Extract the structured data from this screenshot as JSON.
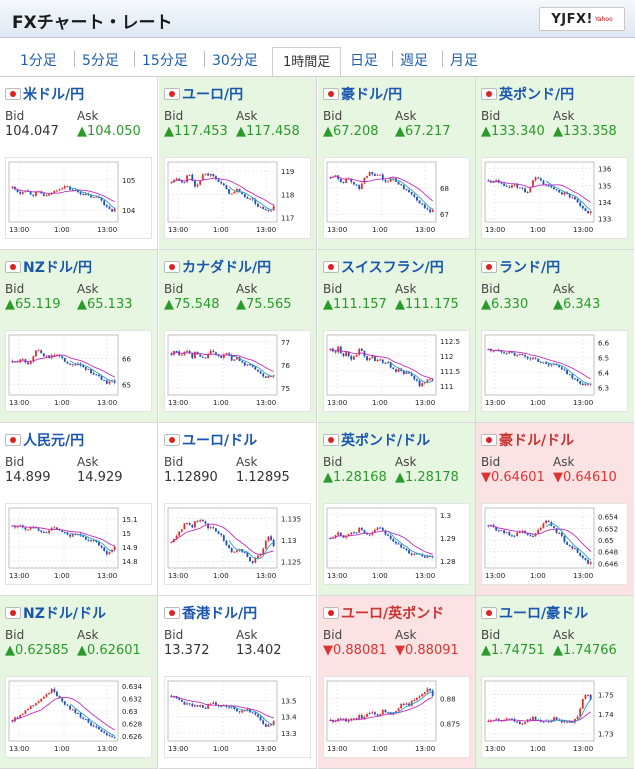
{
  "header": {
    "title": "FXチャート・レート",
    "logo": "YJFX!",
    "logo_sub": "Yahoo"
  },
  "tabs": [
    {
      "label": "1分足"
    },
    {
      "label": "5分足"
    },
    {
      "label": "15分足"
    },
    {
      "label": "30分足"
    },
    {
      "label": "1時間足",
      "active": true
    },
    {
      "label": "日足"
    },
    {
      "label": "週足"
    },
    {
      "label": "月足"
    }
  ],
  "labels": {
    "bid": "Bid",
    "ask": "Ask"
  },
  "x_ticks": [
    "13:00",
    "1:00",
    "13:00"
  ],
  "colors": {
    "up_bg": "#e6f6e0",
    "down_bg": "#fbe3e3",
    "candle_up": "#e03030",
    "candle_down": "#2050c0",
    "ma_long": "#c030c0",
    "ma_short": "#30a0c0"
  },
  "pairs": [
    {
      "name": "米ドル/円",
      "dir": "flat",
      "bid": "104.047",
      "ask": "▲104.050",
      "bid_dir": "flat",
      "ask_dir": "up",
      "flag": "us-jp-flag-icon",
      "y_ticks": [
        "105",
        "104"
      ],
      "yr": [
        103.6,
        105.6
      ],
      "trend": [
        104.75,
        104.65,
        104.55,
        104.7,
        104.6,
        104.5,
        104.6,
        104.55,
        104.45,
        104.5,
        104.6,
        104.7,
        104.75,
        104.8,
        104.7,
        104.65,
        104.6,
        104.55,
        104.5,
        104.45,
        104.4,
        104.45,
        104.3,
        104.1,
        103.95,
        104.05
      ]
    },
    {
      "name": "ユーロ/円",
      "dir": "up",
      "bid": "▲117.453",
      "ask": "▲117.458",
      "bid_dir": "up",
      "ask_dir": "up",
      "flag": "eu-jp-flag-icon",
      "y_ticks": [
        "119",
        "118",
        "117"
      ],
      "yr": [
        116.8,
        119.4
      ],
      "trend": [
        118.5,
        118.7,
        118.6,
        118.4,
        118.9,
        118.7,
        118.2,
        118.6,
        119.0,
        118.8,
        118.9,
        118.7,
        118.5,
        118.3,
        118.1,
        118.0,
        118.2,
        118.1,
        117.8,
        117.9,
        117.7,
        117.5,
        117.4,
        117.3,
        117.2,
        117.45
      ]
    },
    {
      "name": "豪ドル/円",
      "dir": "up",
      "bid": "▲67.208",
      "ask": "▲67.217",
      "bid_dir": "up",
      "ask_dir": "up",
      "flag": "au-jp-flag-icon",
      "y_ticks": [
        "68",
        "67"
      ],
      "yr": [
        66.7,
        69.0
      ],
      "trend": [
        68.4,
        68.5,
        68.3,
        68.2,
        68.4,
        68.3,
        68.1,
        68.0,
        68.3,
        68.5,
        68.6,
        68.4,
        68.5,
        68.3,
        68.2,
        68.4,
        68.3,
        68.1,
        68.0,
        67.9,
        67.8,
        67.6,
        67.4,
        67.2,
        67.1,
        67.2
      ]
    },
    {
      "name": "英ポンド/円",
      "dir": "up",
      "bid": "▲133.340",
      "ask": "▲133.358",
      "bid_dir": "up",
      "ask_dir": "up",
      "flag": "gb-jp-flag-icon",
      "y_ticks": [
        "136",
        "135",
        "134",
        "133"
      ],
      "yr": [
        132.8,
        136.4
      ],
      "trend": [
        135.3,
        135.2,
        135.4,
        135.1,
        135.0,
        134.9,
        135.1,
        134.8,
        135.0,
        134.5,
        134.7,
        135.3,
        135.5,
        135.2,
        135.0,
        134.9,
        134.8,
        134.7,
        134.5,
        134.6,
        134.3,
        134.1,
        133.9,
        133.6,
        133.3,
        133.4
      ]
    },
    {
      "name": "NZドル/円",
      "dir": "up",
      "bid": "▲65.119",
      "ask": "▲65.133",
      "bid_dir": "up",
      "ask_dir": "up",
      "flag": "nz-jp-flag-icon",
      "y_ticks": [
        "66",
        "65"
      ],
      "yr": [
        64.6,
        66.9
      ],
      "trend": [
        65.9,
        65.8,
        66.0,
        65.9,
        65.8,
        66.1,
        66.3,
        66.2,
        66.1,
        66.0,
        66.2,
        66.1,
        66.0,
        65.9,
        65.8,
        65.7,
        65.8,
        65.7,
        65.6,
        65.5,
        65.4,
        65.3,
        65.2,
        65.0,
        65.1,
        65.12
      ]
    },
    {
      "name": "カナダドル/円",
      "dir": "up",
      "bid": "▲75.548",
      "ask": "▲75.565",
      "bid_dir": "up",
      "ask_dir": "up",
      "flag": "ca-jp-flag-icon",
      "y_ticks": [
        "77",
        "76",
        "75"
      ],
      "yr": [
        74.7,
        77.3
      ],
      "trend": [
        76.5,
        76.6,
        76.4,
        76.5,
        76.7,
        76.3,
        76.6,
        76.4,
        76.2,
        76.5,
        76.6,
        76.4,
        76.3,
        76.5,
        76.4,
        76.2,
        76.3,
        76.1,
        76.0,
        76.1,
        75.9,
        75.7,
        75.6,
        75.4,
        75.5,
        75.55
      ]
    },
    {
      "name": "スイスフラン/円",
      "dir": "up",
      "bid": "▲111.157",
      "ask": "▲111.175",
      "bid_dir": "up",
      "ask_dir": "up",
      "flag": "ch-jp-flag-icon",
      "y_ticks": [
        "112.5",
        "112",
        "111.5",
        "111"
      ],
      "yr": [
        110.7,
        112.7
      ],
      "trend": [
        112.2,
        112.1,
        112.3,
        112.0,
        112.1,
        111.9,
        112.0,
        112.2,
        112.1,
        111.9,
        112.0,
        111.8,
        111.9,
        111.7,
        111.8,
        111.6,
        111.5,
        111.6,
        111.4,
        111.5,
        111.3,
        111.2,
        111.0,
        111.1,
        111.2,
        111.16
      ]
    },
    {
      "name": "ランド/円",
      "dir": "up",
      "bid": "▲6.330",
      "ask": "▲6.343",
      "bid_dir": "up",
      "ask_dir": "up",
      "flag": "za-jp-flag-icon",
      "y_ticks": [
        "6.6",
        "6.5",
        "6.4",
        "6.3"
      ],
      "yr": [
        6.25,
        6.65
      ],
      "trend": [
        6.55,
        6.54,
        6.56,
        6.53,
        6.52,
        6.55,
        6.53,
        6.51,
        6.52,
        6.5,
        6.49,
        6.5,
        6.48,
        6.47,
        6.46,
        6.45,
        6.46,
        6.44,
        6.42,
        6.4,
        6.38,
        6.36,
        6.34,
        6.31,
        6.32,
        6.33
      ]
    },
    {
      "name": "人民元/円",
      "dir": "flat",
      "bid": "14.899",
      "ask": "14.929",
      "bid_dir": "flat",
      "ask_dir": "flat",
      "flag": "cn-jp-flag-icon",
      "y_ticks": [
        "15.1",
        "15",
        "14.9",
        "14.8"
      ],
      "yr": [
        14.75,
        15.18
      ],
      "trend": [
        15.05,
        15.04,
        15.06,
        15.03,
        15.02,
        15.05,
        15.04,
        15.01,
        15.0,
        15.02,
        15.04,
        15.03,
        15.01,
        15.0,
        14.98,
        15.0,
        14.99,
        14.97,
        14.95,
        14.96,
        14.94,
        14.92,
        14.88,
        14.84,
        14.86,
        14.9
      ]
    },
    {
      "name": "ユーロ/ドル",
      "dir": "flat",
      "bid": "1.12890",
      "ask": "1.12895",
      "bid_dir": "flat",
      "ask_dir": "flat",
      "flag": "eu-us-flag-icon",
      "y_ticks": [
        "1.135",
        "1.13",
        "1.125"
      ],
      "yr": [
        1.1235,
        1.1375
      ],
      "trend": [
        1.1295,
        1.131,
        1.132,
        1.1335,
        1.134,
        1.133,
        1.1345,
        1.135,
        1.134,
        1.133,
        1.1335,
        1.132,
        1.131,
        1.13,
        1.128,
        1.127,
        1.128,
        1.1275,
        1.127,
        1.1255,
        1.125,
        1.1265,
        1.127,
        1.1295,
        1.131,
        1.1289
      ]
    },
    {
      "name": "英ポンド/ドル",
      "dir": "up",
      "bid": "▲1.28168",
      "ask": "▲1.28178",
      "bid_dir": "up",
      "ask_dir": "up",
      "flag": "gb-us-flag-icon",
      "y_ticks": [
        "1.3",
        "1.29",
        "1.28"
      ],
      "yr": [
        1.277,
        1.303
      ],
      "trend": [
        1.29,
        1.291,
        1.292,
        1.29,
        1.291,
        1.293,
        1.292,
        1.294,
        1.293,
        1.291,
        1.292,
        1.294,
        1.295,
        1.293,
        1.291,
        1.289,
        1.288,
        1.286,
        1.285,
        1.284,
        1.283,
        1.284,
        1.282,
        1.281,
        1.282,
        1.2817
      ]
    },
    {
      "name": "豪ドル/ドル",
      "dir": "down",
      "bid": "▼0.64601",
      "ask": "▼0.64610",
      "bid_dir": "down",
      "ask_dir": "down",
      "flag": "au-us-flag-icon",
      "y_ticks": [
        "0.654",
        "0.652",
        "0.65",
        "0.648",
        "0.646"
      ],
      "yr": [
        0.6452,
        0.6555
      ],
      "trend": [
        0.6525,
        0.6522,
        0.6518,
        0.6515,
        0.6512,
        0.651,
        0.6507,
        0.6512,
        0.6515,
        0.6511,
        0.6505,
        0.6508,
        0.6515,
        0.652,
        0.6535,
        0.6528,
        0.652,
        0.6512,
        0.6505,
        0.6495,
        0.649,
        0.6485,
        0.6478,
        0.6468,
        0.6462,
        0.646
      ]
    },
    {
      "name": "NZドル/ドル",
      "dir": "up",
      "bid": "▲0.62585",
      "ask": "▲0.62601",
      "bid_dir": "up",
      "ask_dir": "up",
      "flag": "nz-us-flag-icon",
      "y_ticks": [
        "0.634",
        "0.632",
        "0.63",
        "0.628",
        "0.626"
      ],
      "yr": [
        0.6252,
        0.6348
      ],
      "trend": [
        0.6285,
        0.629,
        0.6295,
        0.63,
        0.6305,
        0.631,
        0.6315,
        0.632,
        0.6325,
        0.633,
        0.6335,
        0.6325,
        0.6318,
        0.631,
        0.6305,
        0.63,
        0.6295,
        0.629,
        0.6285,
        0.628,
        0.6275,
        0.627,
        0.6265,
        0.626,
        0.6258,
        0.6259
      ]
    },
    {
      "name": "香港ドル/円",
      "dir": "flat",
      "bid": "13.372",
      "ask": "13.402",
      "bid_dir": "flat",
      "ask_dir": "flat",
      "flag": "hk-jp-flag-icon",
      "y_ticks": [
        "13.5",
        "13.4",
        "13.3"
      ],
      "yr": [
        13.25,
        13.62
      ],
      "trend": [
        13.53,
        13.52,
        13.5,
        13.48,
        13.49,
        13.47,
        13.46,
        13.48,
        13.45,
        13.47,
        13.49,
        13.48,
        13.46,
        13.47,
        13.45,
        13.46,
        13.44,
        13.43,
        13.45,
        13.44,
        13.42,
        13.4,
        13.38,
        13.33,
        13.35,
        13.37
      ]
    },
    {
      "name": "ユーロ/英ポンド",
      "dir": "down",
      "bid": "▼0.88081",
      "ask": "▼0.88091",
      "bid_dir": "down",
      "ask_dir": "down",
      "flag": "eu-gb-flag-icon",
      "y_ticks": [
        "0.88",
        "0.875"
      ],
      "yr": [
        0.8715,
        0.8835
      ],
      "trend": [
        0.8755,
        0.8752,
        0.8758,
        0.876,
        0.8756,
        0.8762,
        0.8758,
        0.8765,
        0.876,
        0.8768,
        0.8772,
        0.8765,
        0.877,
        0.8775,
        0.8772,
        0.877,
        0.8775,
        0.8785,
        0.879,
        0.8785,
        0.8795,
        0.88,
        0.8805,
        0.881,
        0.882,
        0.8808
      ]
    },
    {
      "name": "ユーロ/豪ドル",
      "dir": "up",
      "bid": "▲1.74751",
      "ask": "▲1.74766",
      "bid_dir": "up",
      "ask_dir": "up",
      "flag": "eu-au-flag-icon",
      "y_ticks": [
        "1.75",
        "1.74",
        "1.73"
      ],
      "yr": [
        1.726,
        1.757
      ],
      "trend": [
        1.736,
        1.737,
        1.738,
        1.737,
        1.736,
        1.738,
        1.737,
        1.736,
        1.735,
        1.736,
        1.737,
        1.738,
        1.737,
        1.736,
        1.737,
        1.736,
        1.738,
        1.737,
        1.736,
        1.737,
        1.735,
        1.737,
        1.74,
        1.747,
        1.75,
        1.7475
      ]
    }
  ]
}
